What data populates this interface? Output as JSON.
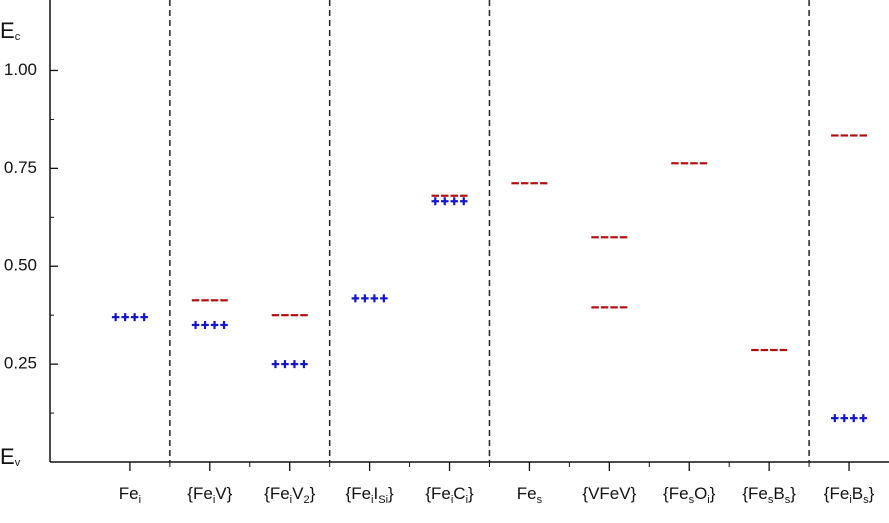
{
  "chart_data": {
    "type": "level",
    "categories": [
      [
        "Fe",
        "i"
      ],
      [
        "{Fe",
        "i",
        "V}"
      ],
      [
        "{Fe",
        "i",
        "V",
        "2",
        "}"
      ],
      [
        "{Fe",
        "i",
        "I",
        "Si",
        "}"
      ],
      [
        "{Fe",
        "i",
        "C",
        "i",
        "}"
      ],
      [
        "Fe",
        "s"
      ],
      [
        "{VFeV}"
      ],
      [
        "{Fe",
        "s",
        "O",
        "i",
        "}"
      ],
      [
        "{Fe",
        "s",
        "B",
        "s",
        "}"
      ],
      [
        "{Fe",
        "i",
        "B",
        "s",
        "}"
      ]
    ],
    "series": [
      {
        "color": "#1414c8",
        "marker": "plus",
        "values": [
          0.37,
          0.35,
          0.25,
          0.418,
          0.666,
          null,
          null,
          null,
          null,
          0.112
        ]
      },
      {
        "color": "#b01010",
        "marker": "dash",
        "values": [
          null,
          0.413,
          0.375,
          null,
          0.68,
          0.712,
          0.574,
          0.763,
          0.286,
          0.834
        ]
      },
      {
        "color": "#b01010",
        "marker": "dash",
        "values": [
          null,
          null,
          null,
          null,
          null,
          null,
          0.395,
          null,
          null,
          null
        ]
      }
    ],
    "band_label": {
      "top": [
        "E",
        "c"
      ],
      "bottom": [
        "E",
        "v"
      ]
    },
    "separators": [
      1.5,
      3.5,
      5.5,
      9.5
    ],
    "xlim": [
      0,
      10.5
    ],
    "ylim": [
      0,
      1.18
    ],
    "yticks": [
      {
        "value": 0.25,
        "label": "0.25"
      },
      {
        "value": 0.5,
        "label": "0.50"
      },
      {
        "value": 0.75,
        "label": "0.75"
      },
      {
        "value": 1,
        "label": "1.00"
      }
    ]
  }
}
